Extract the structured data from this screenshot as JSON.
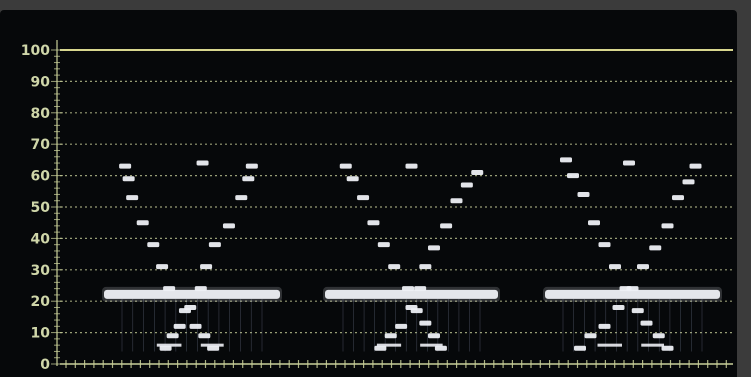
{
  "scope": {
    "type": "rgb-parade-waveform",
    "channels": 3,
    "colors": {
      "background": "#06080a",
      "frame": "#3b3b3b",
      "graticule": "#c9d09a",
      "top_line": "#d8d78f",
      "trace": "#eef0f5",
      "trace_dim": "#9aa7c6"
    },
    "y_axis": {
      "min": 0,
      "max": 100,
      "tick_labels": [
        "0",
        "10",
        "20",
        "30",
        "40",
        "50",
        "60",
        "70",
        "80",
        "90",
        "100"
      ]
    }
  },
  "chart_data": {
    "type": "scatter",
    "xlabel": "",
    "ylabel": "",
    "ylim": [
      0,
      100
    ],
    "grid": true,
    "series": [
      {
        "points": [
          [
            0.12,
            63
          ],
          [
            0.14,
            59
          ],
          [
            0.16,
            53
          ],
          [
            0.22,
            45
          ],
          [
            0.28,
            38
          ],
          [
            0.33,
            31
          ],
          [
            0.37,
            24
          ],
          [
            0.46,
            17
          ],
          [
            0.52,
            12
          ],
          [
            0.57,
            9
          ],
          [
            0.62,
            5
          ],
          [
            0.84,
            63
          ],
          [
            0.82,
            59
          ],
          [
            0.78,
            53
          ],
          [
            0.71,
            44
          ],
          [
            0.63,
            38
          ],
          [
            0.58,
            31
          ],
          [
            0.55,
            24
          ],
          [
            0.49,
            18
          ],
          [
            0.43,
            12
          ],
          [
            0.39,
            9
          ],
          [
            0.35,
            5
          ],
          [
            0.56,
            64
          ]
        ],
        "band": 22
      },
      {
        "points": [
          [
            0.12,
            63
          ],
          [
            0.16,
            59
          ],
          [
            0.22,
            53
          ],
          [
            0.28,
            45
          ],
          [
            0.34,
            38
          ],
          [
            0.4,
            31
          ],
          [
            0.48,
            24
          ],
          [
            0.53,
            17
          ],
          [
            0.58,
            13
          ],
          [
            0.63,
            9
          ],
          [
            0.67,
            5
          ],
          [
            0.88,
            61
          ],
          [
            0.82,
            57
          ],
          [
            0.76,
            52
          ],
          [
            0.7,
            44
          ],
          [
            0.63,
            37
          ],
          [
            0.58,
            31
          ],
          [
            0.55,
            24
          ],
          [
            0.5,
            18
          ],
          [
            0.44,
            12
          ],
          [
            0.38,
            9
          ],
          [
            0.32,
            5
          ],
          [
            0.5,
            63
          ]
        ],
        "band": 22
      },
      {
        "points": [
          [
            0.12,
            65
          ],
          [
            0.16,
            60
          ],
          [
            0.22,
            54
          ],
          [
            0.28,
            45
          ],
          [
            0.34,
            38
          ],
          [
            0.4,
            31
          ],
          [
            0.46,
            24
          ],
          [
            0.53,
            17
          ],
          [
            0.58,
            13
          ],
          [
            0.65,
            9
          ],
          [
            0.7,
            5
          ],
          [
            0.86,
            63
          ],
          [
            0.82,
            58
          ],
          [
            0.76,
            53
          ],
          [
            0.7,
            44
          ],
          [
            0.63,
            37
          ],
          [
            0.56,
            31
          ],
          [
            0.5,
            24
          ],
          [
            0.42,
            18
          ],
          [
            0.34,
            12
          ],
          [
            0.26,
            9
          ],
          [
            0.2,
            5
          ],
          [
            0.48,
            64
          ]
        ],
        "band": 22
      }
    ]
  }
}
